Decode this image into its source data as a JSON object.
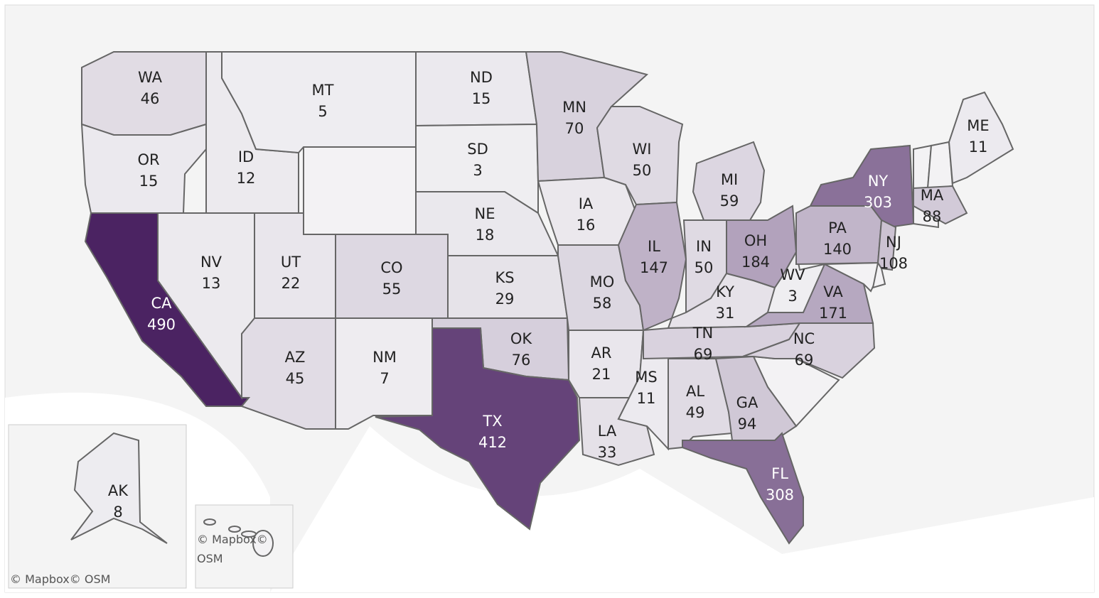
{
  "map": {
    "attribution": "© Mapbox© OSM",
    "color_range": [
      "#f0eff2",
      "#4b2362"
    ],
    "states": [
      {
        "abbr": "WA",
        "value": 46
      },
      {
        "abbr": "OR",
        "value": 15
      },
      {
        "abbr": "CA",
        "value": 490
      },
      {
        "abbr": "ID",
        "value": 12
      },
      {
        "abbr": "NV",
        "value": 13
      },
      {
        "abbr": "MT",
        "value": 5
      },
      {
        "abbr": "UT",
        "value": 22
      },
      {
        "abbr": "AZ",
        "value": 45
      },
      {
        "abbr": "CO",
        "value": 55
      },
      {
        "abbr": "NM",
        "value": 7
      },
      {
        "abbr": "ND",
        "value": 15
      },
      {
        "abbr": "SD",
        "value": 3
      },
      {
        "abbr": "NE",
        "value": 18
      },
      {
        "abbr": "KS",
        "value": 29
      },
      {
        "abbr": "OK",
        "value": 76
      },
      {
        "abbr": "TX",
        "value": 412
      },
      {
        "abbr": "MN",
        "value": 70
      },
      {
        "abbr": "IA",
        "value": 16
      },
      {
        "abbr": "MO",
        "value": 58
      },
      {
        "abbr": "AR",
        "value": 21
      },
      {
        "abbr": "LA",
        "value": 33
      },
      {
        "abbr": "WI",
        "value": 50
      },
      {
        "abbr": "IL",
        "value": 147
      },
      {
        "abbr": "MS",
        "value": 11
      },
      {
        "abbr": "MI",
        "value": 59
      },
      {
        "abbr": "IN",
        "value": 50
      },
      {
        "abbr": "KY",
        "value": 31
      },
      {
        "abbr": "TN",
        "value": 69
      },
      {
        "abbr": "AL",
        "value": 49
      },
      {
        "abbr": "OH",
        "value": 184
      },
      {
        "abbr": "WV",
        "value": 3
      },
      {
        "abbr": "VA",
        "value": 171
      },
      {
        "abbr": "NC",
        "value": 69
      },
      {
        "abbr": "GA",
        "value": 94
      },
      {
        "abbr": "FL",
        "value": 308
      },
      {
        "abbr": "PA",
        "value": 140
      },
      {
        "abbr": "NY",
        "value": 303
      },
      {
        "abbr": "NJ",
        "value": 108
      },
      {
        "abbr": "MA",
        "value": 88
      },
      {
        "abbr": "ME",
        "value": 11
      },
      {
        "abbr": "AK",
        "value": 8
      }
    ]
  }
}
